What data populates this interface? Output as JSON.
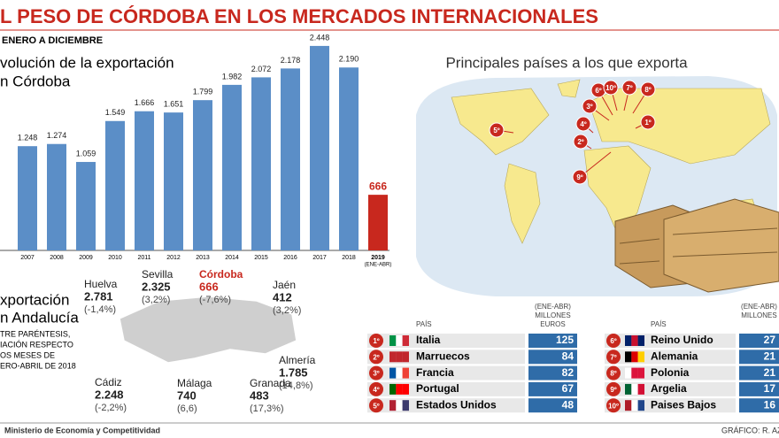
{
  "header": {
    "title": "L PESO DE CÓRDOBA EN LOS MERCADOS INTERNACIONALES"
  },
  "chart_data": {
    "type": "bar",
    "subtitle": "ENERO A DICIEMBRE",
    "title_lines": [
      "volución de la exportación",
      "n Córdoba"
    ],
    "categories": [
      "2007",
      "2008",
      "2009",
      "2010",
      "2011",
      "2012",
      "2013",
      "2014",
      "2015",
      "2016",
      "2017",
      "2018",
      "2019"
    ],
    "category_notes": [
      null,
      null,
      null,
      null,
      null,
      null,
      null,
      null,
      null,
      null,
      null,
      null,
      "(ENE-ABR)"
    ],
    "values": [
      1248,
      1274,
      1059,
      1549,
      1666,
      1651,
      1799,
      1982,
      2072,
      2178,
      2448,
      2190,
      666
    ],
    "value_labels": [
      "1.248",
      "1.274",
      "1.059",
      "1.549",
      "1.666",
      "1.651",
      "1.799",
      "1.982",
      "2.072",
      "2.178",
      "2.448",
      "2.190",
      "666"
    ],
    "colors": [
      "#5b8ec7",
      "#5b8ec7",
      "#5b8ec7",
      "#5b8ec7",
      "#5b8ec7",
      "#5b8ec7",
      "#5b8ec7",
      "#5b8ec7",
      "#5b8ec7",
      "#5b8ec7",
      "#5b8ec7",
      "#5b8ec7",
      "#c8281e"
    ],
    "ylim": [
      0,
      2500
    ]
  },
  "map": {
    "title": "Principales países a los que exporta",
    "markers": [
      "1º",
      "2º",
      "3º",
      "4º",
      "5º",
      "6º",
      "7º",
      "8º",
      "9º",
      "10º"
    ]
  },
  "andalucia": {
    "title_lines": [
      "xportación",
      "n Andalucía"
    ],
    "note_lines": [
      "TRE PARÉNTESIS,",
      "IACIÓN RESPECTO",
      "OS MESES DE",
      "ERO-ABRIL DE 2018"
    ],
    "provinces": [
      {
        "name": "Huelva",
        "value": "2.781",
        "change": "(-1,4%)"
      },
      {
        "name": "Sevilla",
        "value": "2.325",
        "change": "(3,2%)"
      },
      {
        "name": "Córdoba",
        "value": "666",
        "change": "(-7,6%)"
      },
      {
        "name": "Jaén",
        "value": "412",
        "change": "(3,2%)"
      },
      {
        "name": "Almería",
        "value": "1.785",
        "change": "(14,8%)"
      },
      {
        "name": "Granada",
        "value": "483",
        "change": "(17,3%)"
      },
      {
        "name": "Málaga",
        "value": "740",
        "change": "(6,6)"
      },
      {
        "name": "Cádiz",
        "value": "2.248",
        "change": "(-2,2%)"
      }
    ]
  },
  "tables": [
    {
      "country_header": "PAÍS",
      "value_header": [
        "(ENE-ABR)",
        "MILLONES",
        "EUROS"
      ],
      "rows": [
        {
          "rank": "1º",
          "country": "Italia",
          "value": "125"
        },
        {
          "rank": "2º",
          "country": "Marruecos",
          "value": "84"
        },
        {
          "rank": "3º",
          "country": "Francia",
          "value": "82"
        },
        {
          "rank": "4º",
          "country": "Portugal",
          "value": "67"
        },
        {
          "rank": "5º",
          "country": "Estados Unidos",
          "value": "48"
        }
      ]
    },
    {
      "country_header": "PAÍS",
      "value_header": [
        "(ENE-ABR)",
        "MILLONES"
      ],
      "rows": [
        {
          "rank": "6º",
          "country": "Reino Unido",
          "value": "27"
        },
        {
          "rank": "7º",
          "country": "Alemania",
          "value": "21"
        },
        {
          "rank": "8º",
          "country": "Polonia",
          "value": "21"
        },
        {
          "rank": "9º",
          "country": "Argelia",
          "value": "17"
        },
        {
          "rank": "10º",
          "country": "Paises Bajos",
          "value": "16"
        }
      ]
    }
  ],
  "footer": {
    "source": "Ministerio de Economía y Competitividad",
    "credit": "GRÁFICO: R. AZ"
  }
}
